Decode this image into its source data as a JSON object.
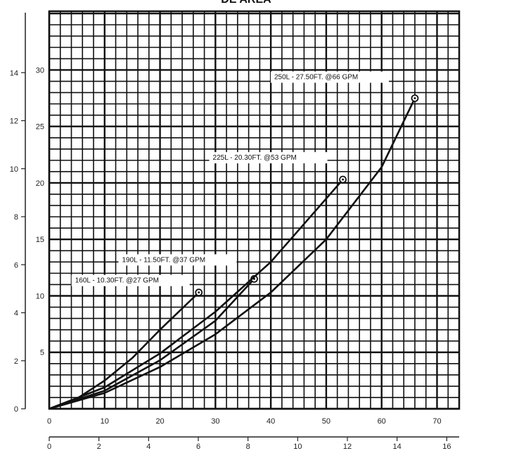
{
  "chart_data": {
    "type": "line",
    "title": "DE AREA",
    "x_axis_top": {
      "label": "",
      "lim": [
        0,
        74
      ],
      "ticks": [
        "0",
        "10",
        "20",
        "30",
        "40",
        "50",
        "60",
        "70"
      ]
    },
    "x_axis_bottom": {
      "label": "",
      "lim": [
        0,
        16.5
      ],
      "ticks": [
        "0",
        "2",
        "4",
        "6",
        "8",
        "10",
        "12",
        "14",
        "16"
      ]
    },
    "y_axis_inner": {
      "label": "",
      "lim": [
        0,
        35.2
      ],
      "ticks": [
        "5",
        "10",
        "15",
        "20",
        "25",
        "30"
      ]
    },
    "y_axis_outer": {
      "label": "",
      "lim": [
        0,
        16
      ],
      "ticks": [
        "0",
        "2",
        "4",
        "6",
        "8",
        "10",
        "12",
        "14"
      ]
    },
    "series": [
      {
        "name": "160L - 10.30FT. @27 GPM",
        "x": [
          0,
          5,
          10,
          15,
          20,
          27
        ],
        "y": [
          0,
          0.9,
          2.5,
          4.5,
          7.0,
          10.3
        ]
      },
      {
        "name": "190L - 11.50FT. @37 GPM",
        "x": [
          0,
          10,
          20,
          30,
          37
        ],
        "y": [
          0,
          1.6,
          4.3,
          7.8,
          11.5
        ]
      },
      {
        "name": "225L - 20.30FT. @53 GPM",
        "x": [
          0,
          10,
          20,
          30,
          40,
          53
        ],
        "y": [
          0,
          1.9,
          4.9,
          8.6,
          13.0,
          20.3
        ]
      },
      {
        "name": "250L - 27.50FT. @66 GPM",
        "x": [
          0,
          10,
          20,
          30,
          40,
          50,
          60,
          66
        ],
        "y": [
          0,
          1.4,
          3.7,
          6.6,
          10.3,
          15.0,
          21.4,
          27.5
        ]
      }
    ],
    "annotations": [
      {
        "text": "160L - 10.30FT. @27 GPM",
        "x": 27,
        "y": 10.3
      },
      {
        "text": "190L - 11.50FT. @37 GPM",
        "x": 37,
        "y": 11.5
      },
      {
        "text": "225L - 20.30FT. @53 GPM",
        "x": 53,
        "y": 20.3
      },
      {
        "text": "250L - 27.50FT. @66 GPM",
        "x": 66,
        "y": 27.5
      }
    ],
    "grid": true,
    "colors": {
      "line": "#111111",
      "grid": "#111111",
      "background": "#ffffff"
    }
  }
}
